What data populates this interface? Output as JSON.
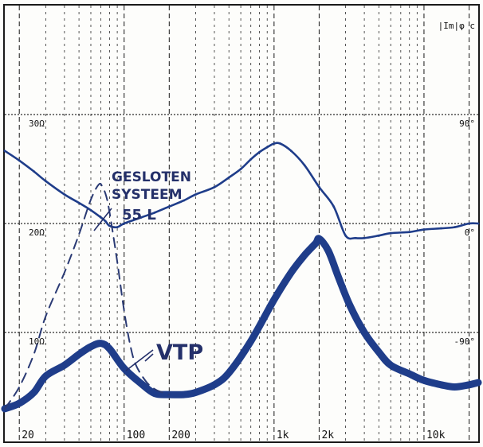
{
  "chart_data": {
    "type": "line",
    "title": "",
    "corner_label": "|Im|φ c",
    "x_scale": "log",
    "x_range": [
      16,
      23000
    ],
    "x_ticks": [
      {
        "value": 20,
        "label": "20"
      },
      {
        "value": 100,
        "label": "100"
      },
      {
        "value": 200,
        "label": "200"
      },
      {
        "value": 1000,
        "label": "1k"
      },
      {
        "value": 2000,
        "label": "2k"
      },
      {
        "value": 10000,
        "label": "10k"
      }
    ],
    "y_left_ticks": [
      {
        "value": 30,
        "label": "30Ω"
      },
      {
        "value": 20,
        "label": "20Ω"
      },
      {
        "value": 10,
        "label": "10Ω"
      }
    ],
    "y_right_ticks": [
      {
        "value": 90,
        "label": "90°"
      },
      {
        "value": 0,
        "label": "0°"
      },
      {
        "value": -90,
        "label": "-90°"
      }
    ],
    "impedance_range": [
      0,
      40
    ],
    "phase_range": [
      -180,
      180
    ],
    "grid": true,
    "annotations": [
      {
        "text": "GESLOTEN",
        "line": 1
      },
      {
        "text": "SYSTEEM",
        "line": 2
      },
      {
        "text": "55 L",
        "line": 3
      },
      {
        "text": "VTP",
        "line": 4
      }
    ],
    "series": [
      {
        "key": "vtp",
        "name": "VTP",
        "axis": "impedance",
        "color": "#1f3d8a",
        "style": "thick",
        "x": [
          16,
          20,
          25,
          30,
          40,
          50,
          60,
          70,
          80,
          100,
          130,
          160,
          200,
          250,
          300,
          400,
          500,
          700,
          1000,
          1300,
          1600,
          1900,
          2000,
          2300,
          2700,
          3200,
          4000,
          5000,
          6000,
          8000,
          10000,
          13000,
          16000,
          20000,
          23000
        ],
        "y": [
          3.0,
          3.5,
          4.5,
          6.0,
          7.0,
          8.0,
          8.7,
          9.0,
          8.5,
          6.7,
          5.3,
          4.4,
          4.3,
          4.3,
          4.5,
          5.2,
          6.3,
          9.2,
          13.0,
          15.5,
          17.1,
          18.2,
          18.6,
          17.5,
          15.0,
          12.5,
          10.0,
          8.2,
          7.0,
          6.2,
          5.6,
          5.2,
          5.0,
          5.2,
          5.4
        ]
      },
      {
        "key": "phase",
        "name": "",
        "axis": "phase",
        "color": "#1f3d8a",
        "style": "thin",
        "x": [
          16,
          20,
          25,
          30,
          40,
          50,
          60,
          70,
          75,
          80,
          90,
          100,
          130,
          160,
          200,
          250,
          300,
          400,
          500,
          600,
          700,
          800,
          900,
          1000,
          1100,
          1300,
          1600,
          2000,
          2500,
          3000,
          3500,
          4000,
          5000,
          6000,
          8000,
          10000,
          13000,
          16000,
          20000,
          23000
        ],
        "y": [
          60,
          52,
          43,
          35,
          24,
          17,
          11,
          5,
          2,
          -2,
          -3,
          0,
          5,
          9,
          14,
          19,
          24,
          30,
          38,
          45,
          53,
          59,
          63,
          66,
          66,
          60,
          48,
          30,
          14,
          -10,
          -12,
          -12,
          -10,
          -8,
          -7,
          -5,
          -4,
          -3,
          0,
          0
        ]
      },
      {
        "key": "gesloten",
        "name": "GESLOTEN SYSTEEM 55 L",
        "axis": "impedance",
        "color": "#2a3a74",
        "style": "dashed",
        "x": [
          16,
          20,
          25,
          30,
          40,
          50,
          60,
          68,
          72,
          76,
          80,
          90,
          100,
          110,
          120,
          140,
          160,
          180,
          200
        ],
        "y": [
          3.0,
          5.0,
          8.0,
          11.5,
          15.5,
          19.0,
          22.2,
          23.6,
          23.3,
          22.5,
          21.0,
          16.5,
          12.0,
          8.8,
          7.0,
          5.5,
          4.8,
          4.5,
          4.3
        ]
      }
    ]
  }
}
